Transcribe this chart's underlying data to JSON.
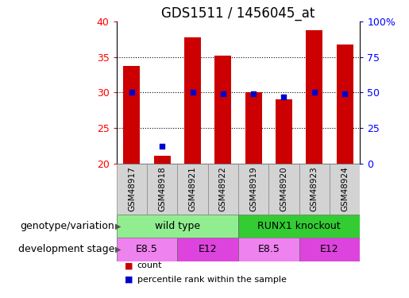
{
  "title": "GDS1511 / 1456045_at",
  "samples": [
    "GSM48917",
    "GSM48918",
    "GSM48921",
    "GSM48922",
    "GSM48919",
    "GSM48920",
    "GSM48923",
    "GSM48924"
  ],
  "count_values": [
    33.7,
    21.1,
    37.7,
    35.2,
    30.0,
    29.0,
    38.7,
    36.7
  ],
  "percentile_values": [
    50,
    12,
    50,
    49,
    49,
    47,
    50,
    49
  ],
  "ylim_left": [
    20,
    40
  ],
  "ylim_right": [
    0,
    100
  ],
  "yticks_left": [
    20,
    25,
    30,
    35,
    40
  ],
  "yticks_right": [
    0,
    25,
    50,
    75,
    100
  ],
  "bar_color": "#cc0000",
  "dot_color": "#0000cc",
  "bar_width": 0.55,
  "genotype_groups": [
    {
      "label": "wild type",
      "start": 0,
      "end": 4,
      "color": "#90ee90"
    },
    {
      "label": "RUNX1 knockout",
      "start": 4,
      "end": 8,
      "color": "#33cc33"
    }
  ],
  "dev_stage_groups": [
    {
      "label": "E8.5",
      "start": 0,
      "end": 2,
      "color": "#ee82ee"
    },
    {
      "label": "E12",
      "start": 2,
      "end": 4,
      "color": "#dd44dd"
    },
    {
      "label": "E8.5",
      "start": 4,
      "end": 6,
      "color": "#ee82ee"
    },
    {
      "label": "E12",
      "start": 6,
      "end": 8,
      "color": "#dd44dd"
    }
  ],
  "legend_count_label": "count",
  "legend_percentile_label": "percentile rank within the sample",
  "genotype_label": "genotype/variation",
  "dev_stage_label": "development stage",
  "title_fontsize": 12,
  "tick_fontsize": 9,
  "sample_label_fontsize": 7.5,
  "row_label_fontsize": 9,
  "row_content_fontsize": 9,
  "grid_yticks": [
    25,
    30,
    35
  ]
}
